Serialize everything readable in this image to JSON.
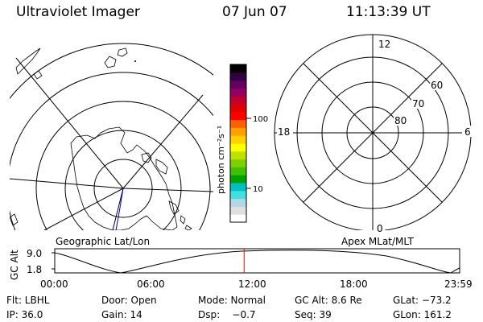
{
  "header": {
    "instrument": "Ultraviolet Imager",
    "date": "07 Jun 07",
    "time": "11:13:39 UT"
  },
  "left_panel": {
    "caption": "Geographic Lat/Lon"
  },
  "right_panel": {
    "caption": "Apex MLat/MLT",
    "mlt_labels": [
      "12",
      "6",
      "0",
      "18"
    ],
    "mlat_labels": [
      "60",
      "70",
      "80"
    ]
  },
  "colorbar": {
    "unit": "photon cm⁻²s⁻¹",
    "ticks": [
      "100",
      "10"
    ],
    "colors": [
      "#ffffff",
      "#e0e0e0",
      "#b0d8e8",
      "#40e0e0",
      "#00c0c0",
      "#00a000",
      "#40c000",
      "#80d000",
      "#c0e000",
      "#ffff00",
      "#ffd000",
      "#ffa000",
      "#ff6000",
      "#ff0000",
      "#e00000",
      "#c00030",
      "#900060",
      "#600060",
      "#300040",
      "#000000"
    ]
  },
  "timeline": {
    "ylabel": "GC Alt",
    "yticks": [
      "9.0",
      "1.8"
    ],
    "xticks": [
      "00:00",
      "06:00",
      "12:00",
      "18:00",
      "23:59"
    ],
    "marker_fraction": 0.4678,
    "marker_color": "#ff0000"
  },
  "status": {
    "flt": "Flt: LBHL",
    "door": "Door: Open",
    "mode": "Mode: Normal",
    "gc_alt": "GC Alt: 8.6 Re",
    "glat": "GLat: −73.2",
    "ip": "IP: 36.0",
    "gain": "Gain: 14",
    "dsp": "Dsp:    −0.7",
    "seq": "Seq: 39",
    "glon": "GLon: 161.2"
  }
}
